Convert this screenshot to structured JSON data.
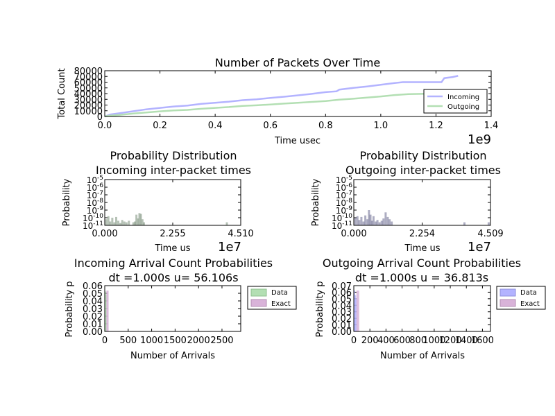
{
  "charts": {
    "packets": {
      "title": "Number of Packets Over Time",
      "xlabel": "Time usec",
      "ylabel": "Total Count",
      "x_offset_label": "1e9",
      "xticks": [
        "0.0",
        "0.2",
        "0.4",
        "0.6",
        "0.8",
        "1.0",
        "1.2",
        "1.4"
      ],
      "yticks": [
        "0",
        "10000",
        "20000",
        "30000",
        "40000",
        "50000",
        "60000",
        "70000",
        "80000"
      ],
      "legend": [
        "Incoming",
        "Outgoing"
      ]
    },
    "pd_in": {
      "title1": "Probability Distribution",
      "title2": "Incoming inter-packet times",
      "xlabel": "Time us",
      "ylabel": "Probability",
      "x_offset_label": "1e7",
      "xticks": [
        "0.000",
        "2.255",
        "4.510"
      ]
    },
    "pd_out": {
      "title1": "Probability Distribution",
      "title2": "Outgoing inter-packet times",
      "xlabel": "Time us",
      "ylabel": "Probability",
      "x_offset_label": "1e7",
      "xticks": [
        "0.000",
        "2.254",
        "4.509"
      ]
    },
    "arr_in": {
      "title1": "Incoming Arrival Count Probabilities",
      "title2": "dt =1.000s u= 56.106s",
      "xlabel": "Number of Arrivals",
      "ylabel": "Probability p",
      "xticks": [
        "0",
        "500",
        "1000",
        "1500",
        "2000",
        "2500"
      ],
      "yticks": [
        "0.00",
        "0.01",
        "0.02",
        "0.03",
        "0.04",
        "0.05",
        "0.06"
      ],
      "legend": [
        "Data",
        "Exact"
      ]
    },
    "arr_out": {
      "title1": "Outgoing Arrival Count Probabilities",
      "title2": "dt =1.000s u = 36.813s",
      "xlabel": "Number of Arrivals",
      "ylabel": "Probability p",
      "xticks": [
        "0",
        "200",
        "400",
        "600",
        "800",
        "1000",
        "1200",
        "1400",
        "1600"
      ],
      "yticks": [
        "0.00",
        "0.01",
        "0.02",
        "0.03",
        "0.04",
        "0.05",
        "0.06",
        "0.07"
      ],
      "legend": [
        "Data",
        "Exact"
      ]
    }
  },
  "chart_data": [
    {
      "type": "line",
      "title": "Number of Packets Over Time",
      "xlabel": "Time usec",
      "ylabel": "Total Count",
      "x_scale_note": "1e9",
      "xlim": [
        0.0,
        1.4
      ],
      "ylim": [
        0,
        80000
      ],
      "legend_position": "lower-right",
      "series": [
        {
          "name": "Incoming",
          "color": "#b3b3ff",
          "x": [
            0.0,
            0.02,
            0.05,
            0.1,
            0.15,
            0.2,
            0.25,
            0.3,
            0.35,
            0.4,
            0.45,
            0.5,
            0.55,
            0.6,
            0.65,
            0.7,
            0.75,
            0.8,
            0.84,
            0.85,
            0.9,
            0.95,
            1.0,
            1.05,
            1.08,
            1.1,
            1.15,
            1.2,
            1.22,
            1.23,
            1.26,
            1.28
          ],
          "y": [
            0,
            3500,
            5500,
            9000,
            12500,
            15000,
            17500,
            19000,
            22000,
            24000,
            26000,
            28500,
            30000,
            32500,
            34500,
            37000,
            39500,
            42500,
            44000,
            47000,
            50000,
            52500,
            55500,
            58500,
            60000,
            60000,
            60000,
            60000,
            60000,
            67000,
            69000,
            71000
          ]
        },
        {
          "name": "Outgoing",
          "color": "#b3dfb3",
          "x": [
            0.0,
            0.02,
            0.05,
            0.1,
            0.15,
            0.2,
            0.25,
            0.3,
            0.35,
            0.4,
            0.45,
            0.5,
            0.55,
            0.6,
            0.65,
            0.7,
            0.75,
            0.8,
            0.85,
            0.9,
            0.95,
            1.0,
            1.05,
            1.1,
            1.15,
            1.2,
            1.22,
            1.23
          ],
          "y": [
            0,
            1500,
            2500,
            5000,
            7000,
            9000,
            10500,
            11500,
            13500,
            15000,
            16500,
            18500,
            19500,
            21000,
            22500,
            24000,
            25500,
            27000,
            29500,
            31000,
            33000,
            35000,
            37500,
            39000,
            39500,
            40000,
            40000,
            40000
          ]
        }
      ]
    },
    {
      "type": "bar",
      "title": "Probability Distribution Incoming inter-packet times",
      "xlabel": "Time us",
      "ylabel": "Probability",
      "x_scale_note": "1e7",
      "xlim": [
        0,
        4.51
      ],
      "y_scale": "log",
      "ylim_exp": [
        -11,
        -5
      ],
      "bar_color": "#7a8f7a",
      "bars": [
        {
          "x": 0.05,
          "exp": -10.2
        },
        {
          "x": 0.12,
          "exp": -9.8
        },
        {
          "x": 0.18,
          "exp": -10.5
        },
        {
          "x": 0.25,
          "exp": -10.0
        },
        {
          "x": 0.32,
          "exp": -10.6
        },
        {
          "x": 0.38,
          "exp": -9.9
        },
        {
          "x": 0.45,
          "exp": -10.4
        },
        {
          "x": 0.52,
          "exp": -10.7
        },
        {
          "x": 0.58,
          "exp": -10.3
        },
        {
          "x": 0.65,
          "exp": -10.5
        },
        {
          "x": 0.72,
          "exp": -10.6
        },
        {
          "x": 0.8,
          "exp": -10.4
        },
        {
          "x": 0.95,
          "exp": -10.6
        },
        {
          "x": 1.0,
          "exp": -10.5
        },
        {
          "x": 1.05,
          "exp": -9.6
        },
        {
          "x": 1.1,
          "exp": -10.1
        },
        {
          "x": 1.15,
          "exp": -9.4
        },
        {
          "x": 1.2,
          "exp": -9.5
        },
        {
          "x": 1.25,
          "exp": -10.2
        },
        {
          "x": 1.3,
          "exp": -10.6
        },
        {
          "x": 4.05,
          "exp": -10.6
        }
      ]
    },
    {
      "type": "bar",
      "title": "Probability Distribution Outgoing inter-packet times",
      "xlabel": "Time us",
      "ylabel": "Probability",
      "x_scale_note": "1e7",
      "xlim": [
        0,
        4.509
      ],
      "y_scale": "log",
      "ylim_exp": [
        -11,
        -5
      ],
      "bar_color": "#6a6a8f",
      "bars": [
        {
          "x": 0.05,
          "exp": -10.0
        },
        {
          "x": 0.12,
          "exp": -9.8
        },
        {
          "x": 0.18,
          "exp": -10.3
        },
        {
          "x": 0.25,
          "exp": -9.9
        },
        {
          "x": 0.32,
          "exp": -10.5
        },
        {
          "x": 0.38,
          "exp": -9.7
        },
        {
          "x": 0.45,
          "exp": -10.2
        },
        {
          "x": 0.5,
          "exp": -9.0
        },
        {
          "x": 0.55,
          "exp": -9.6
        },
        {
          "x": 0.6,
          "exp": -10.4
        },
        {
          "x": 0.65,
          "exp": -9.8
        },
        {
          "x": 0.72,
          "exp": -10.5
        },
        {
          "x": 0.78,
          "exp": -10.3
        },
        {
          "x": 0.85,
          "exp": -10.6
        },
        {
          "x": 0.92,
          "exp": -10.4
        },
        {
          "x": 0.98,
          "exp": -10.1
        },
        {
          "x": 1.05,
          "exp": -9.3
        },
        {
          "x": 1.12,
          "exp": -9.9
        },
        {
          "x": 1.18,
          "exp": -10.2
        },
        {
          "x": 1.25,
          "exp": -10.5
        },
        {
          "x": 3.65,
          "exp": -10.6
        },
        {
          "x": 4.45,
          "exp": -10.6
        }
      ]
    },
    {
      "type": "bar",
      "title": "Incoming Arrival Count Probabilities dt =1.000s u= 56.106s",
      "xlabel": "Number of Arrivals",
      "ylabel": "Probability p",
      "xlim": [
        0,
        2900
      ],
      "ylim": [
        0,
        0.06
      ],
      "legend_position": "outside-right",
      "series": [
        {
          "name": "Data",
          "color": "#b3dfb3",
          "x": [
            0,
            20
          ],
          "width": 20,
          "values": [
            0.052,
            0.048
          ]
        },
        {
          "name": "Exact",
          "color": "#d9b3d9",
          "x": [
            40,
            56
          ],
          "width": 20,
          "values": [
            0.053,
            0.053
          ]
        }
      ]
    },
    {
      "type": "bar",
      "title": "Outgoing Arrival Count Probabilities dt =1.000s u = 36.813s",
      "xlabel": "Number of Arrivals",
      "ylabel": "Probability p",
      "xlim": [
        0,
        1700
      ],
      "ylim": [
        0,
        0.07
      ],
      "legend_position": "outside-right",
      "series": [
        {
          "name": "Data",
          "color": "#b3b3ff",
          "x": [
            0,
            12,
            24
          ],
          "width": 12,
          "values": [
            0.062,
            0.055,
            0.05
          ]
        },
        {
          "name": "Exact",
          "color": "#d9b3d9",
          "x": [
            36,
            50
          ],
          "width": 14,
          "values": [
            0.062,
            0.062
          ]
        }
      ]
    }
  ]
}
